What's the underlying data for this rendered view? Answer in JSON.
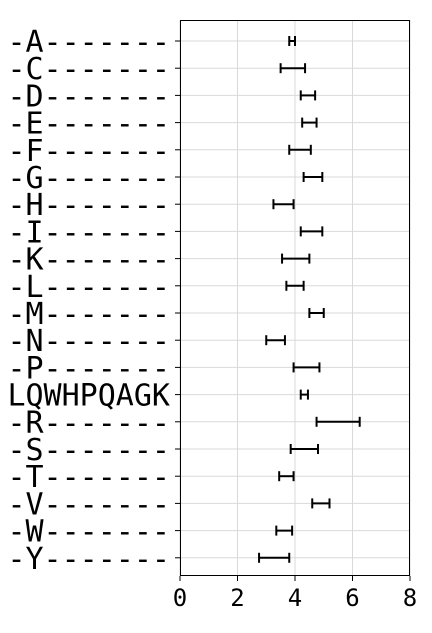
{
  "chart_data": {
    "type": "errorbar",
    "title": "",
    "xlabel": "",
    "ylabel": "",
    "xlim": [
      0,
      8
    ],
    "x_ticks": [
      0,
      2,
      4,
      6,
      8
    ],
    "grid": true,
    "categories": [
      "-A-------",
      "-C-------",
      "-D-------",
      "-E-------",
      "-F-------",
      "-G-------",
      "-H-------",
      "-I-------",
      "-K-------",
      "-L-------",
      "-M-------",
      "-N-------",
      "-P-------",
      "LQWHPQAGK",
      "-R-------",
      "-S-------",
      "-T-------",
      "-V-------",
      "-W-------",
      "-Y-------"
    ],
    "intervals": [
      [
        3.8,
        4.0
      ],
      [
        3.5,
        4.35
      ],
      [
        4.2,
        4.7
      ],
      [
        4.25,
        4.75
      ],
      [
        3.8,
        4.55
      ],
      [
        4.3,
        4.95
      ],
      [
        3.25,
        3.95
      ],
      [
        4.2,
        4.95
      ],
      [
        3.55,
        4.5
      ],
      [
        3.7,
        4.3
      ],
      [
        4.5,
        5.0
      ],
      [
        3.0,
        3.65
      ],
      [
        3.95,
        4.85
      ],
      [
        4.2,
        4.45
      ],
      [
        4.75,
        6.25
      ],
      [
        3.85,
        4.8
      ],
      [
        3.45,
        3.95
      ],
      [
        4.6,
        5.2
      ],
      [
        3.35,
        3.9
      ],
      [
        2.75,
        3.8
      ]
    ],
    "color": "#000000"
  }
}
